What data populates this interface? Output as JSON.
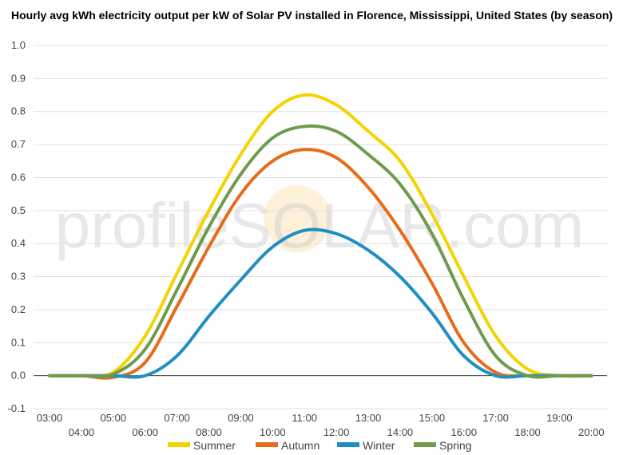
{
  "chart_data": {
    "type": "line",
    "title": "Hourly avg kWh electricity output per kW of Solar PV installed in Florence, Mississippi, United States (by season)",
    "xlabel": "",
    "ylabel": "",
    "ylim": [
      -0.1,
      1.0
    ],
    "yticks": [
      "-0.1",
      "0.0",
      "0.1",
      "0.2",
      "0.3",
      "0.4",
      "0.5",
      "0.6",
      "0.7",
      "0.8",
      "0.9",
      "1.0"
    ],
    "x": [
      "03:00",
      "04:00",
      "05:00",
      "06:00",
      "07:00",
      "08:00",
      "09:00",
      "10:00",
      "11:00",
      "12:00",
      "13:00",
      "14:00",
      "15:00",
      "16:00",
      "17:00",
      "18:00",
      "19:00",
      "20:00"
    ],
    "grid": true,
    "legend_position": "bottom",
    "watermark": "profileSOLAR.com",
    "series": [
      {
        "name": "Summer",
        "color": "#f5d300",
        "values": [
          0.0,
          0.0,
          0.01,
          0.12,
          0.31,
          0.5,
          0.67,
          0.8,
          0.85,
          0.82,
          0.74,
          0.65,
          0.49,
          0.3,
          0.12,
          0.02,
          0.0,
          0.0
        ]
      },
      {
        "name": "Autumn",
        "color": "#e66c1a",
        "values": [
          0.0,
          0.0,
          -0.005,
          0.04,
          0.21,
          0.39,
          0.55,
          0.65,
          0.685,
          0.66,
          0.57,
          0.44,
          0.28,
          0.1,
          0.01,
          0.0,
          0.0,
          0.0
        ]
      },
      {
        "name": "Winter",
        "color": "#1f8fc2",
        "values": [
          0.0,
          0.0,
          0.0,
          0.0,
          0.06,
          0.18,
          0.29,
          0.39,
          0.44,
          0.43,
          0.38,
          0.3,
          0.19,
          0.06,
          0.0,
          0.0,
          0.0,
          0.0
        ]
      },
      {
        "name": "Spring",
        "color": "#6e9b4c",
        "values": [
          0.0,
          0.0,
          0.005,
          0.08,
          0.26,
          0.45,
          0.61,
          0.72,
          0.755,
          0.74,
          0.67,
          0.58,
          0.43,
          0.23,
          0.06,
          0.0,
          0.0,
          0.0
        ]
      }
    ]
  }
}
